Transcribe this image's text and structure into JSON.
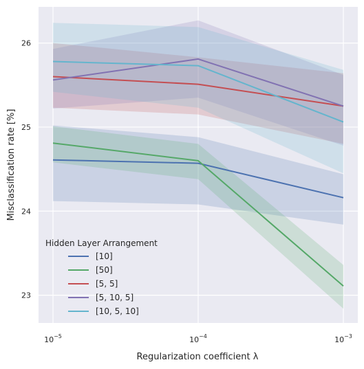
{
  "chart_data": {
    "type": "line",
    "xlabel": "Regularization coefficient λ",
    "ylabel": "Misclassification rate [%]",
    "x_scale": "log",
    "x": [
      1e-05,
      0.0001,
      0.001
    ],
    "x_tick_labels": [
      {
        "base": "10",
        "exp": "−5"
      },
      {
        "base": "10",
        "exp": "−4"
      },
      {
        "base": "10",
        "exp": "−3"
      }
    ],
    "y_ticks": [
      23,
      24,
      25,
      26
    ],
    "ylim": [
      22.67,
      26.43
    ],
    "grid": true,
    "legend": {
      "title": "Hidden Layer Arrangement",
      "position": "lower-left"
    },
    "series": [
      {
        "name": "[10]",
        "color": "#4c72b0",
        "values": [
          24.61,
          24.57,
          24.16
        ],
        "lower": [
          24.12,
          24.08,
          23.84
        ],
        "upper": [
          25.02,
          24.88,
          24.44
        ]
      },
      {
        "name": "[50]",
        "color": "#55a868",
        "values": [
          24.81,
          24.6,
          23.11
        ],
        "lower": [
          24.58,
          24.38,
          22.84
        ],
        "upper": [
          25.01,
          24.8,
          23.36
        ]
      },
      {
        "name": "[5, 5]",
        "color": "#c44e52",
        "values": [
          25.6,
          25.51,
          25.25
        ],
        "lower": [
          25.23,
          25.15,
          24.8
        ],
        "upper": [
          26.0,
          25.83,
          25.64
        ]
      },
      {
        "name": "[5, 10, 5]",
        "color": "#8172b2",
        "values": [
          25.56,
          25.81,
          25.25
        ],
        "lower": [
          25.22,
          25.35,
          24.78
        ],
        "upper": [
          25.93,
          26.27,
          25.62
        ]
      },
      {
        "name": "[10, 5, 10]",
        "color": "#64b5cd",
        "values": [
          25.78,
          25.73,
          25.06
        ],
        "lower": [
          25.42,
          25.23,
          24.45
        ],
        "upper": [
          26.24,
          26.19,
          25.68
        ]
      }
    ]
  }
}
